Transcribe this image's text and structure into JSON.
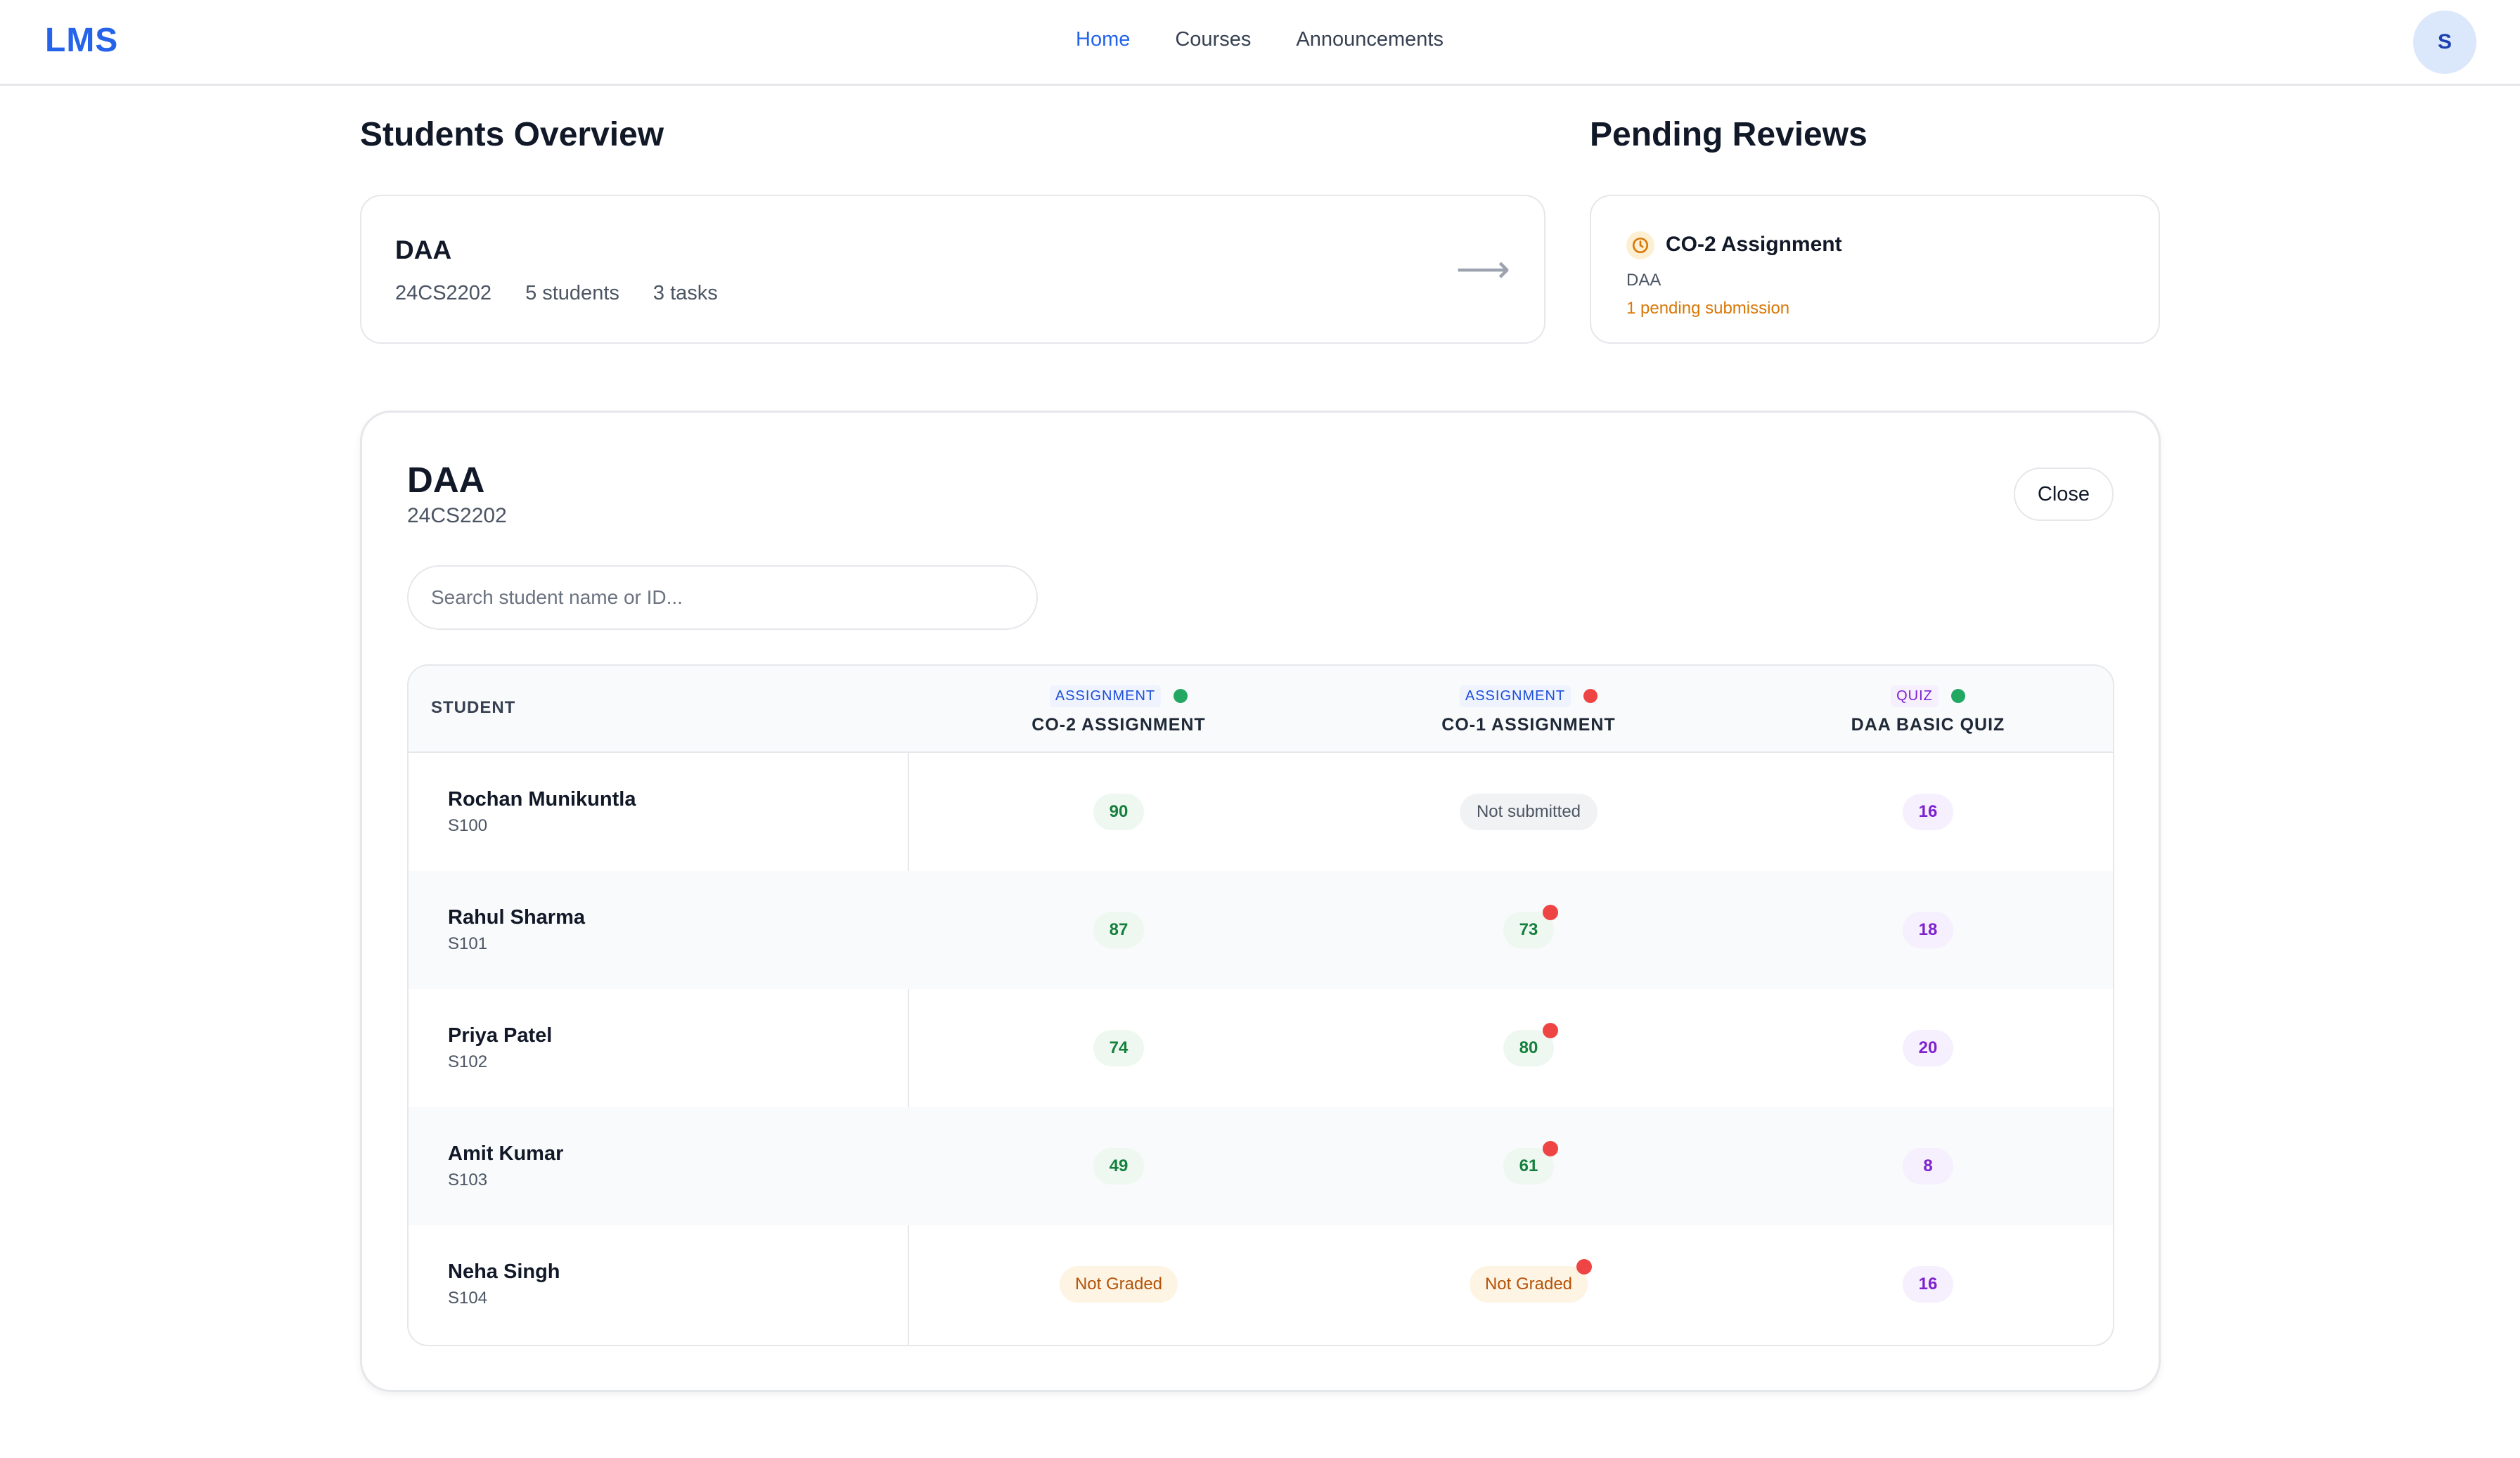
{
  "app": {
    "logo": "LMS",
    "user_initial": "S"
  },
  "nav": {
    "items": [
      "Home",
      "Courses",
      "Announcements"
    ],
    "active": "Home"
  },
  "overview": {
    "title": "Students Overview",
    "course": {
      "name": "DAA",
      "code": "24CS2202",
      "students": "5 students",
      "tasks": "3 tasks",
      "arrow": "⟶"
    }
  },
  "reviews": {
    "title": "Pending Reviews",
    "item": {
      "title": "CO-2 Assignment",
      "course": "DAA",
      "pending": "1 pending submission"
    }
  },
  "panel": {
    "title": "DAA",
    "code": "24CS2202",
    "close_label": "Close",
    "search_placeholder": "Search student name or ID...",
    "table": {
      "student_header": "STUDENT",
      "columns": [
        {
          "tag": "ASSIGNMENT",
          "name": "CO-2 ASSIGNMENT",
          "status": "green"
        },
        {
          "tag": "ASSIGNMENT",
          "name": "CO-1 ASSIGNMENT",
          "status": "red"
        },
        {
          "tag": "QUIZ",
          "name": "DAA BASIC QUIZ",
          "status": "green"
        }
      ],
      "rows": [
        {
          "name": "Rochan Munikuntla",
          "id": "S100",
          "c1": "90",
          "c2": "Not submitted",
          "c3": "16"
        },
        {
          "name": "Rahul Sharma",
          "id": "S101",
          "c1": "87",
          "c2": "73",
          "c3": "18"
        },
        {
          "name": "Priya Patel",
          "id": "S102",
          "c1": "74",
          "c2": "80",
          "c3": "20"
        },
        {
          "name": "Amit Kumar",
          "id": "S103",
          "c1": "49",
          "c2": "61",
          "c3": "8"
        },
        {
          "name": "Neha Singh",
          "id": "S104",
          "c1": "Not Graded",
          "c2": "Not Graded",
          "c3": "16"
        }
      ]
    }
  },
  "colors": {
    "accent": "#2563eb",
    "pending": "#d97706",
    "ontime": "#22a862",
    "late": "#ef4444"
  }
}
